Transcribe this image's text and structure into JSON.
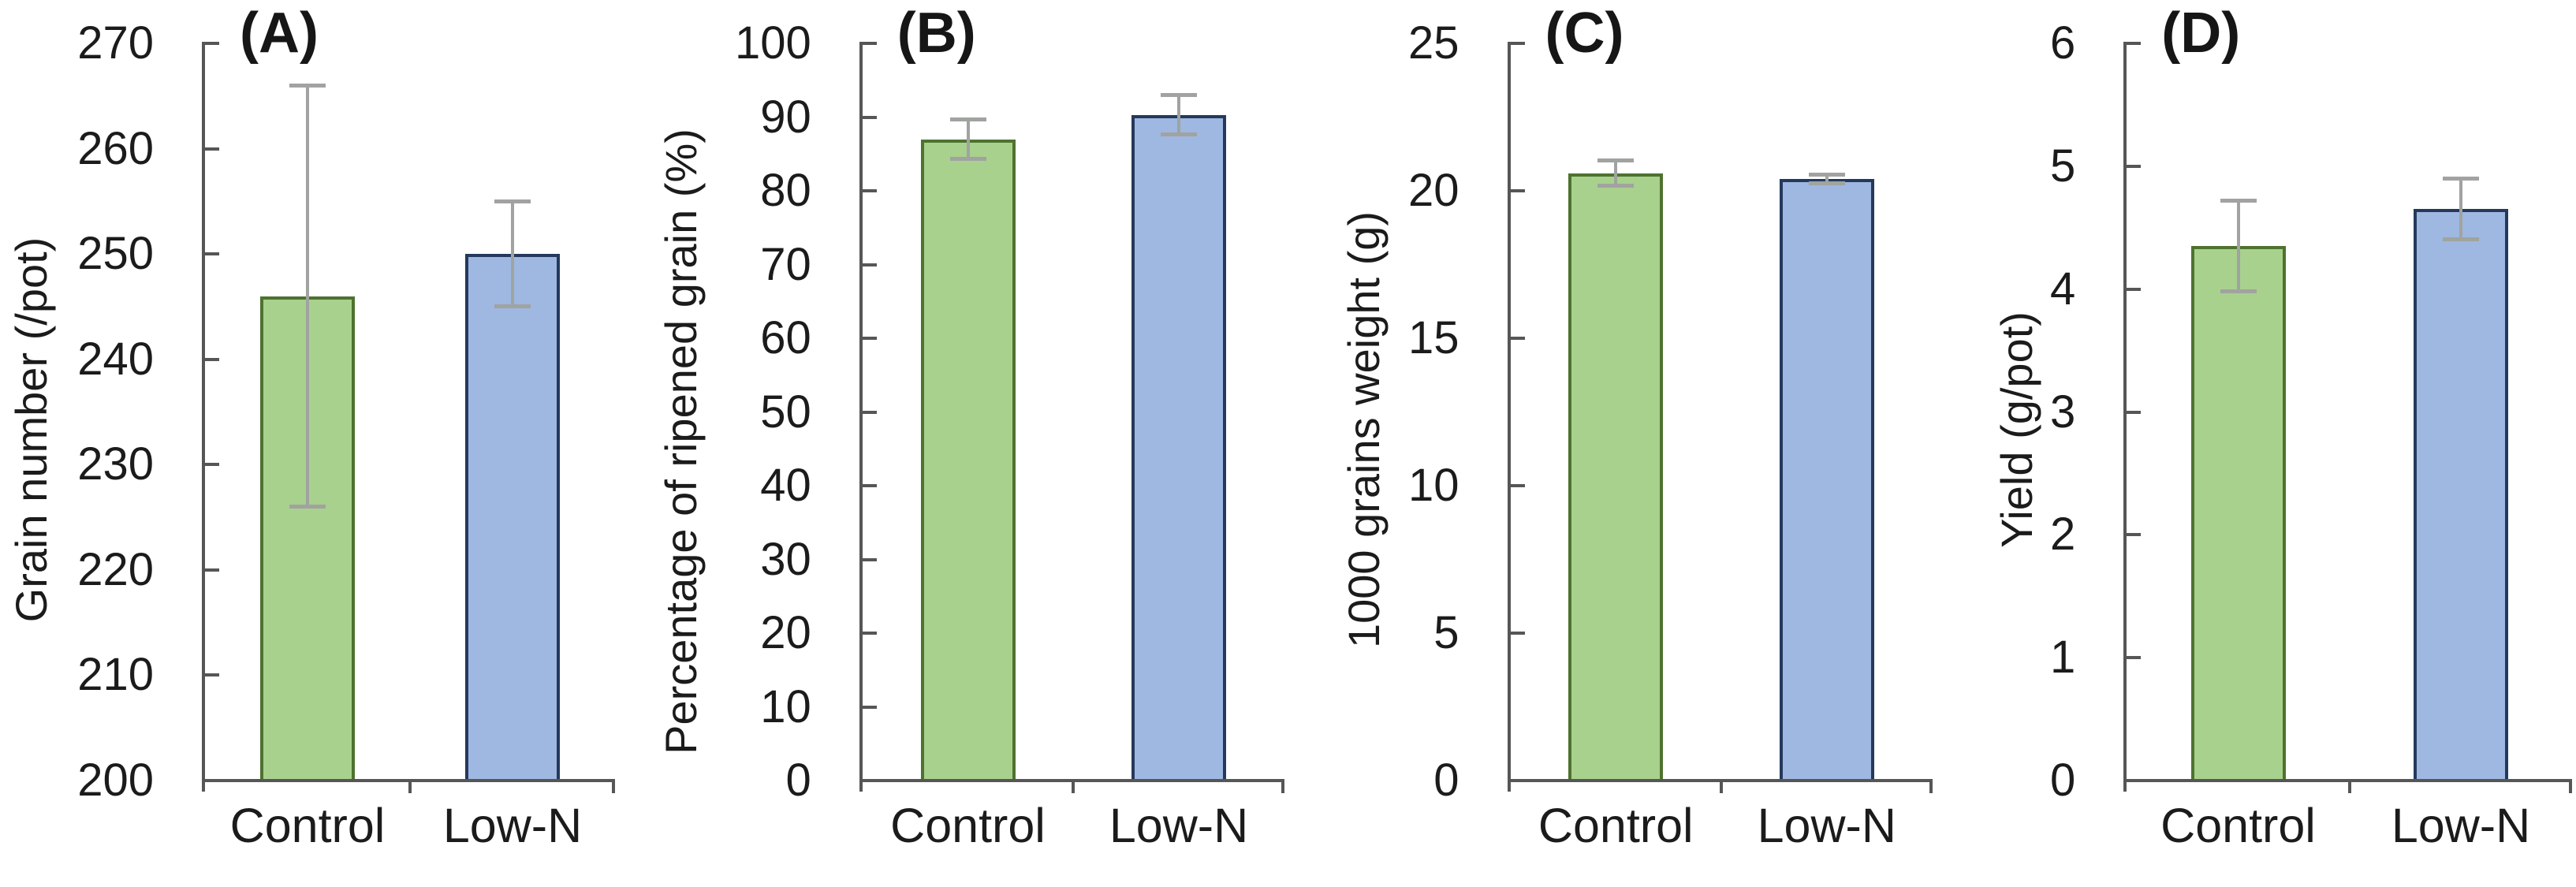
{
  "figure": {
    "background": "#ffffff",
    "axis_color": "#565656",
    "text_color": "#1b1b1b",
    "error_bar_color": "#a0a39f"
  },
  "bar_styles": [
    {
      "category": "Control",
      "fill": "#a9d18e",
      "border": "#4e722f"
    },
    {
      "category": "Low-N",
      "fill": "#9fb8e2",
      "border": "#24395b"
    }
  ],
  "chart_data": [
    {
      "type": "bar",
      "panel": "(A)",
      "ylabel": "Grain number (/pot)",
      "categories": [
        "Control",
        "Low-N"
      ],
      "values": [
        246,
        250
      ],
      "errors": [
        20,
        5
      ],
      "ylim": [
        200,
        270
      ],
      "yticks": [
        200,
        210,
        220,
        230,
        240,
        250,
        260,
        270
      ],
      "grid": false,
      "legend": "none"
    },
    {
      "type": "bar",
      "panel": "(B)",
      "ylabel": "Percentage of ripened grain (%)",
      "categories": [
        "Control",
        "Low-N"
      ],
      "values": [
        87,
        90.3
      ],
      "errors": [
        2.7,
        2.7
      ],
      "ylim": [
        0,
        100
      ],
      "yticks": [
        0,
        10,
        20,
        30,
        40,
        50,
        60,
        70,
        80,
        90,
        100
      ],
      "grid": false,
      "legend": "none"
    },
    {
      "type": "bar",
      "panel": "(C)",
      "ylabel": "1000 grains weight (g)",
      "categories": [
        "Control",
        "Low-N"
      ],
      "values": [
        20.6,
        20.4
      ],
      "errors": [
        0.45,
        0.15
      ],
      "ylim": [
        0,
        25
      ],
      "yticks": [
        0,
        5,
        10,
        15,
        20,
        25
      ],
      "grid": false,
      "legend": "none"
    },
    {
      "type": "bar",
      "panel": "(D)",
      "ylabel": "Yield (g/pot)",
      "categories": [
        "Control",
        "Low-N"
      ],
      "values": [
        4.35,
        4.65
      ],
      "errors": [
        0.37,
        0.25
      ],
      "ylim": [
        0,
        6
      ],
      "yticks": [
        0,
        1,
        2,
        3,
        4,
        5,
        6
      ],
      "grid": false,
      "legend": "none"
    }
  ]
}
